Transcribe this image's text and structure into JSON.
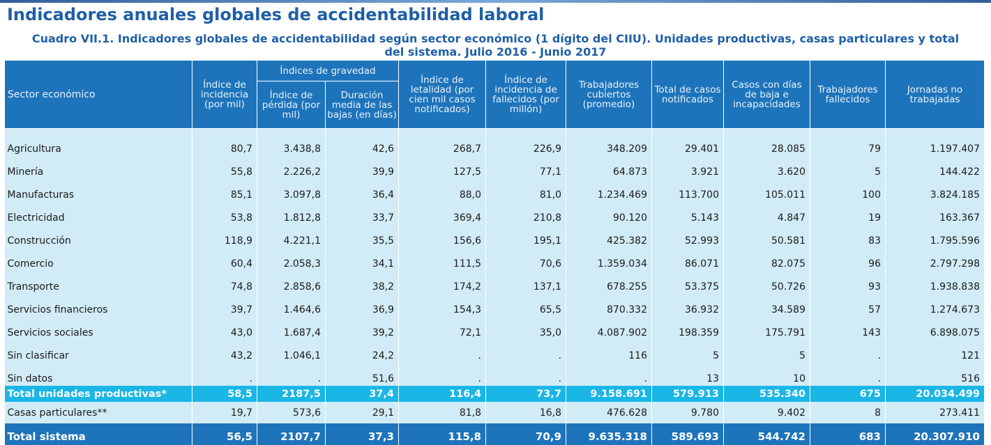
{
  "page": {
    "title": "Indicadores anuales globales de accidentabilidad laboral",
    "subtitle": "Cuadro VII.1. Indicadores globales de accidentabilidad según sector económico (1 dígito del CIIU). Unidades productivas, casas particulares y total del sistema. Julio 2016 - Junio 2017"
  },
  "table": {
    "headers": {
      "sector": "Sector económico",
      "incidencia": "Índice de incidencia (por mil)",
      "gravedad_group": "Índices de gravedad",
      "perdida": "Índice de pérdida (por mil)",
      "duracion": "Duración media de las bajas (en días)",
      "letalidad": "Índice de letalidad (por cien mil casos notificados)",
      "incidencia_fallecidos": "Índice de incidencia de fallecidos (por millón)",
      "trabajadores": "Trabajadores cubiertos (promedio)",
      "total_casos": "Total de casos notificados",
      "casos_baja": "Casos con días de baja e incapacidades",
      "fallecidos": "Trabajadores fallecidos",
      "jornadas": "Jornadas no trabajadas"
    },
    "rows": [
      [
        "Agricultura",
        "80,7",
        "3.438,8",
        "42,6",
        "268,7",
        "226,9",
        "348.209",
        "29.401",
        "28.085",
        "79",
        "1.197.407"
      ],
      [
        "Minería",
        "55,8",
        "2.226,2",
        "39,9",
        "127,5",
        "77,1",
        "64.873",
        "3.921",
        "3.620",
        "5",
        "144.422"
      ],
      [
        "Manufacturas",
        "85,1",
        "3.097,8",
        "36,4",
        "88,0",
        "81,0",
        "1.234.469",
        "113.700",
        "105.011",
        "100",
        "3.824.185"
      ],
      [
        "Electricidad",
        "53,8",
        "1.812,8",
        "33,7",
        "369,4",
        "210,8",
        "90.120",
        "5.143",
        "4.847",
        "19",
        "163.367"
      ],
      [
        "Construcción",
        "118,9",
        "4.221,1",
        "35,5",
        "156,6",
        "195,1",
        "425.382",
        "52.993",
        "50.581",
        "83",
        "1.795.596"
      ],
      [
        "Comercio",
        "60,4",
        "2.058,3",
        "34,1",
        "111,5",
        "70,6",
        "1.359.034",
        "86.071",
        "82.075",
        "96",
        "2.797.298"
      ],
      [
        "Transporte",
        "74,8",
        "2.858,6",
        "38,2",
        "174,2",
        "137,1",
        "678.255",
        "53.375",
        "50.726",
        "93",
        "1.938.838"
      ],
      [
        "Servicios financieros",
        "39,7",
        "1.464,6",
        "36,9",
        "154,3",
        "65,5",
        "870.332",
        "36.932",
        "34.589",
        "57",
        "1.274.673"
      ],
      [
        "Servicios sociales",
        "43,0",
        "1.687,4",
        "39,2",
        "72,1",
        "35,0",
        "4.087.902",
        "198.359",
        "175.791",
        "143",
        "6.898.075"
      ],
      [
        "Sin clasificar",
        "43,2",
        "1.046,1",
        "24,2",
        ".",
        ".",
        "116",
        "5",
        "5",
        ".",
        "121"
      ],
      [
        "Sin datos",
        ".",
        ".",
        "51,6",
        ".",
        ".",
        ".",
        "13",
        "10",
        ".",
        "516"
      ]
    ],
    "total_unidades": [
      "Total unidades productivas*",
      "58,5",
      "2187,5",
      "37,4",
      "116,4",
      "73,7",
      "9.158.691",
      "579.913",
      "535.340",
      "675",
      "20.034.499"
    ],
    "casas_particulares": [
      "Casas particulares**",
      "19,7",
      "573,6",
      "29,1",
      "81,8",
      "16,8",
      "476.628",
      "9.780",
      "9.402",
      "8",
      "273.411"
    ],
    "total_sistema": [
      "Total sistema",
      "56,5",
      "2107,7",
      "37,3",
      "115,8",
      "70,9",
      "9.635.318",
      "589.693",
      "544.742",
      "683",
      "20.307.910"
    ]
  }
}
